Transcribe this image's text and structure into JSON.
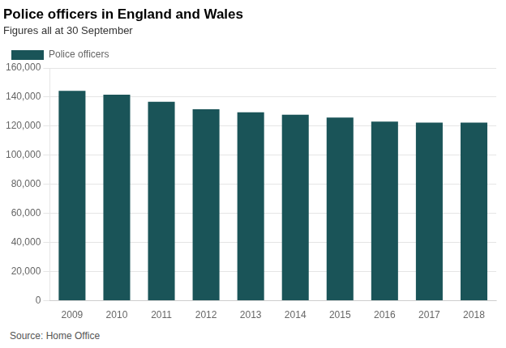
{
  "chart_data": {
    "type": "bar",
    "title": "Police officers in England and Wales",
    "subtitle": "Figures all at 30 September",
    "annotations": [
      "Source: Home Office"
    ],
    "categories": [
      "2009",
      "2010",
      "2011",
      "2012",
      "2013",
      "2014",
      "2015",
      "2016",
      "2017",
      "2018"
    ],
    "series": [
      {
        "name": "Police officers",
        "color": "#1a5458",
        "values": [
          144353,
          141647,
          136819,
          131588,
          129584,
          127909,
          125973,
          123142,
          122404,
          122395
        ]
      }
    ],
    "ylim": [
      0,
      160000
    ],
    "yticks": [
      0,
      {
        "value": 20000,
        "label": "20,000"
      },
      {
        "value": 40000,
        "label": "40,000"
      },
      {
        "value": 60000,
        "label": "60,000"
      },
      {
        "value": 80000,
        "label": "80,000"
      },
      {
        "value": 100000,
        "label": "100,000"
      },
      {
        "value": 120000,
        "label": "120,000"
      },
      {
        "value": 140000,
        "label": "140,000"
      },
      {
        "value": 160000,
        "label": "160,000"
      }
    ],
    "grid": true,
    "legend": "top"
  }
}
